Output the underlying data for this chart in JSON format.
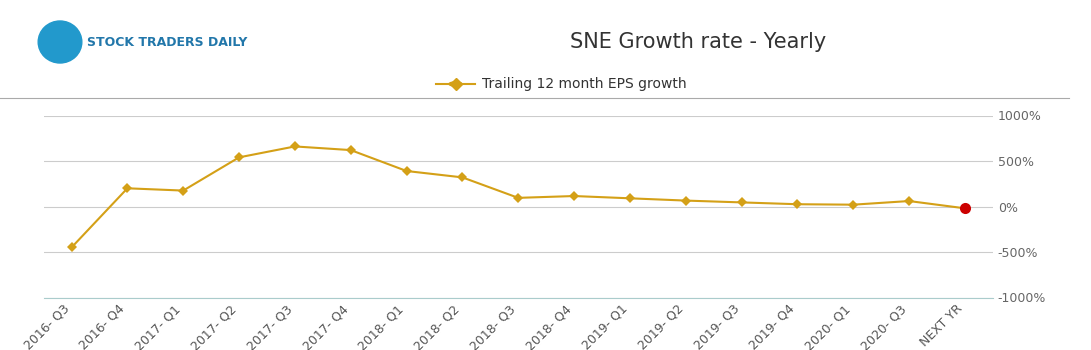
{
  "title": "SNE Growth rate - Yearly",
  "legend_label": "Trailing 12 month EPS growth",
  "x_labels": [
    "2016- Q3",
    "2016- Q4",
    "2017- Q1",
    "2017- Q2",
    "2017- Q3",
    "2017- Q4",
    "2018- Q1",
    "2018- Q2",
    "2018- Q3",
    "2018- Q4",
    "2019- Q1",
    "2019- Q2",
    "2019- Q3",
    "2019- Q4",
    "2020- Q1",
    "2020- Q3",
    "NEXT YR"
  ],
  "y_values": [
    -450,
    200,
    175,
    540,
    660,
    620,
    390,
    320,
    95,
    115,
    90,
    65,
    45,
    25,
    20,
    60,
    -20
  ],
  "line_color": "#D4A017",
  "marker_color": "#D4A017",
  "last_marker_color": "#CC0000",
  "ylim": [
    -1000,
    1000
  ],
  "yticks": [
    -1000,
    -500,
    0,
    500,
    1000
  ],
  "ytick_labels": [
    "-1000%",
    "-500%",
    "0%",
    "500%",
    "1000%"
  ],
  "background_color": "#ffffff",
  "grid_color": "#cccccc",
  "title_fontsize": 15,
  "legend_fontsize": 10,
  "axis_fontsize": 9
}
